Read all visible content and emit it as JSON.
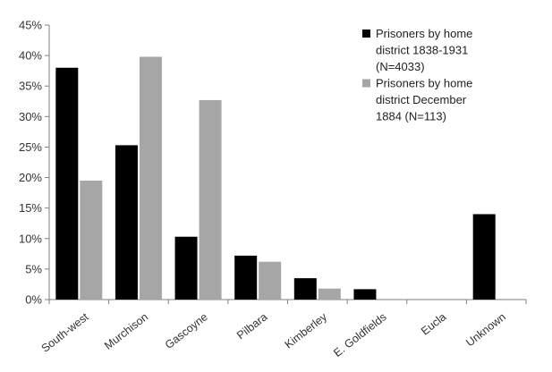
{
  "chart_data": {
    "type": "bar",
    "categories": [
      "South-west",
      "Murchison",
      "Gascoyne",
      "Pilbara",
      "Kimberley",
      "E. Goldfields",
      "Eucla",
      "Unknown"
    ],
    "series": [
      {
        "name": "Prisoners by home district 1838-1931 (N=4033)",
        "legend_lines": [
          "Prisoners by home",
          "district 1838-1931",
          "(N=4033)"
        ],
        "color": "#000000",
        "values": [
          38,
          25.3,
          10.3,
          7.2,
          3.5,
          1.7,
          0,
          14
        ]
      },
      {
        "name": "Prisoners by home district December 1884 (N=113)",
        "legend_lines": [
          "Prisoners by home",
          "district December",
          "1884 (N=113)"
        ],
        "color": "#a6a6a6",
        "values": [
          19.5,
          39.8,
          32.7,
          6.2,
          1.8,
          0,
          0,
          0
        ]
      }
    ],
    "ylim": [
      0,
      45
    ],
    "yticks": [
      0,
      5,
      10,
      15,
      20,
      25,
      30,
      35,
      40,
      45
    ],
    "ytick_labels": [
      "0%",
      "5%",
      "10%",
      "15%",
      "20%",
      "25%",
      "30%",
      "35%",
      "40%",
      "45%"
    ],
    "grid": false,
    "legend_position": "top-right",
    "title": "",
    "xlabel": "",
    "ylabel": ""
  }
}
